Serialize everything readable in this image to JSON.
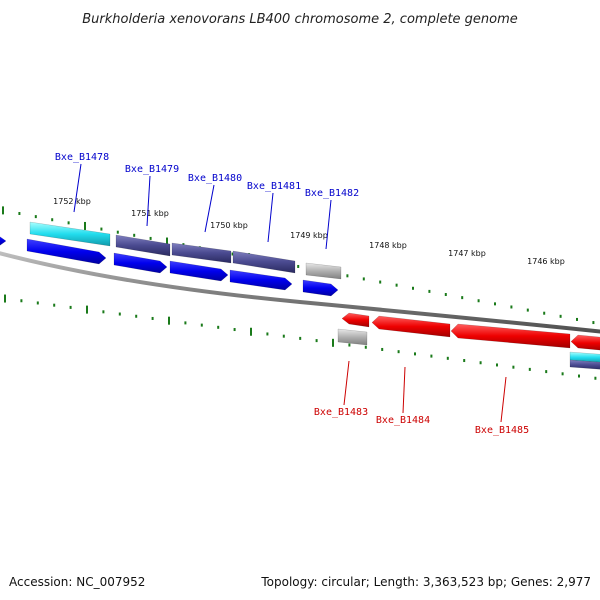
{
  "title": "Burkholderia xenovorans LB400 chromosome 2, complete genome",
  "footer": {
    "accession": "Accession: NC_007952",
    "summary": "Topology: circular; Length: 3,363,523 bp; Genes: 2,977"
  },
  "colors": {
    "forward_label": "#0000cc",
    "reverse_label": "#cc0000",
    "tick": "#1a7a1a",
    "backbone": "#808080",
    "gene_blue": "#0000ee",
    "gene_cyan": "#22ddee",
    "gene_slate": "#4a4a90",
    "gene_gray": "#b0b0b0",
    "gene_red": "#ee0000"
  },
  "kbp_ticks": [
    {
      "label": "1752 kbp"
    },
    {
      "label": "1751 kbp"
    },
    {
      "label": "1750 kbp"
    },
    {
      "label": "1749 kbp"
    },
    {
      "label": "1748 kbp"
    },
    {
      "label": "1747 kbp"
    },
    {
      "label": "1746 kbp"
    }
  ],
  "forward_genes": [
    {
      "label": "Bxe_B1478"
    },
    {
      "label": "Bxe_B1479"
    },
    {
      "label": "Bxe_B1480"
    },
    {
      "label": "Bxe_B1481"
    },
    {
      "label": "Bxe_B1482"
    }
  ],
  "reverse_genes": [
    {
      "label": "Bxe_B1483"
    },
    {
      "label": "Bxe_B1484"
    },
    {
      "label": "Bxe_B1485"
    }
  ]
}
